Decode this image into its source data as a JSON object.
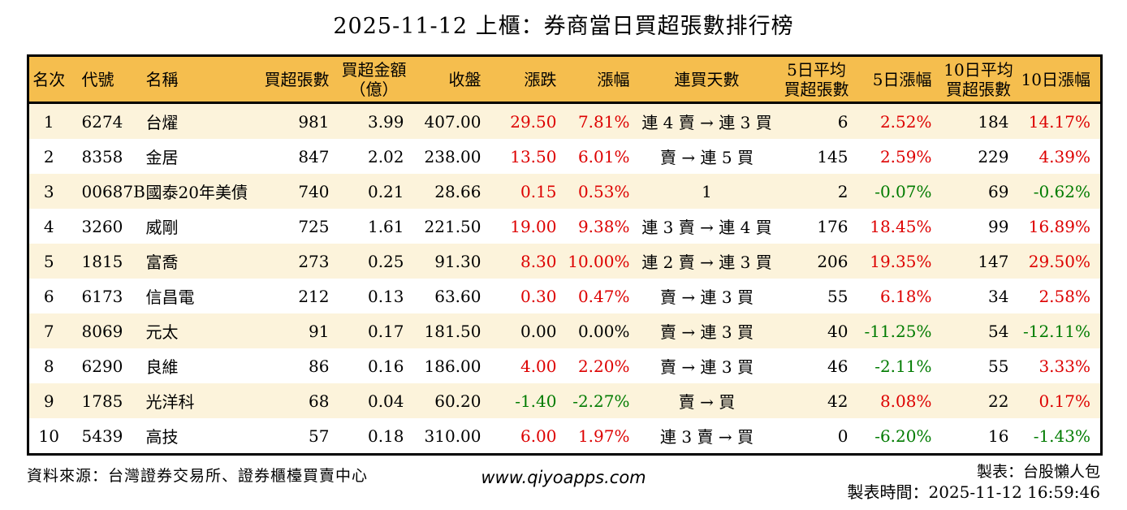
{
  "title": "2025-11-12 上櫃：券商當日買超張數排行榜",
  "table": {
    "headers": [
      "名次",
      "代號",
      "名稱",
      "買超張數",
      "買超金額\n（億）",
      "收盤",
      "漲跌",
      "漲幅",
      "連買天數",
      "5日平均\n買超張數",
      "5日漲幅",
      "10日平均\n買超張數",
      "10日漲幅"
    ],
    "rows": [
      {
        "cells": [
          "1",
          "6274",
          "台燿",
          "981",
          "3.99",
          "407.00",
          "29.50",
          "7.81%",
          "連 4 賣 → 連 3 買",
          "6",
          "2.52%",
          "184",
          "14.17%"
        ],
        "tones": [
          null,
          null,
          null,
          null,
          null,
          null,
          "up",
          "up",
          null,
          null,
          "up",
          null,
          "up"
        ]
      },
      {
        "cells": [
          "2",
          "8358",
          "金居",
          "847",
          "2.02",
          "238.00",
          "13.50",
          "6.01%",
          "賣 → 連 5 買",
          "145",
          "2.59%",
          "229",
          "4.39%"
        ],
        "tones": [
          null,
          null,
          null,
          null,
          null,
          null,
          "up",
          "up",
          null,
          null,
          "up",
          null,
          "up"
        ]
      },
      {
        "cells": [
          "3",
          "00687B",
          "國泰20年美債",
          "740",
          "0.21",
          "28.66",
          "0.15",
          "0.53%",
          "1",
          "2",
          "-0.07%",
          "69",
          "-0.62%"
        ],
        "tones": [
          null,
          null,
          null,
          null,
          null,
          null,
          "up",
          "up",
          null,
          null,
          "down",
          null,
          "down"
        ]
      },
      {
        "cells": [
          "4",
          "3260",
          "威剛",
          "725",
          "1.61",
          "221.50",
          "19.00",
          "9.38%",
          "連 3 賣 → 連 4 買",
          "176",
          "18.45%",
          "99",
          "16.89%"
        ],
        "tones": [
          null,
          null,
          null,
          null,
          null,
          null,
          "up",
          "up",
          null,
          null,
          "up",
          null,
          "up"
        ]
      },
      {
        "cells": [
          "5",
          "1815",
          "富喬",
          "273",
          "0.25",
          "91.30",
          "8.30",
          "10.00%",
          "連 2 賣 → 連 3 買",
          "206",
          "19.35%",
          "147",
          "29.50%"
        ],
        "tones": [
          null,
          null,
          null,
          null,
          null,
          null,
          "up",
          "up",
          null,
          null,
          "up",
          null,
          "up"
        ]
      },
      {
        "cells": [
          "6",
          "6173",
          "信昌電",
          "212",
          "0.13",
          "63.60",
          "0.30",
          "0.47%",
          "賣 → 連 3 買",
          "55",
          "6.18%",
          "34",
          "2.58%"
        ],
        "tones": [
          null,
          null,
          null,
          null,
          null,
          null,
          "up",
          "up",
          null,
          null,
          "up",
          null,
          "up"
        ]
      },
      {
        "cells": [
          "7",
          "8069",
          "元太",
          "91",
          "0.17",
          "181.50",
          "0.00",
          "0.00%",
          "賣 → 連 3 買",
          "40",
          "-11.25%",
          "54",
          "-12.11%"
        ],
        "tones": [
          null,
          null,
          null,
          null,
          null,
          null,
          null,
          null,
          null,
          null,
          "down",
          null,
          "down"
        ]
      },
      {
        "cells": [
          "8",
          "6290",
          "良維",
          "86",
          "0.16",
          "186.00",
          "4.00",
          "2.20%",
          "賣 → 連 3 買",
          "46",
          "-2.11%",
          "55",
          "3.33%"
        ],
        "tones": [
          null,
          null,
          null,
          null,
          null,
          null,
          "up",
          "up",
          null,
          null,
          "down",
          null,
          "up"
        ]
      },
      {
        "cells": [
          "9",
          "1785",
          "光洋科",
          "68",
          "0.04",
          "60.20",
          "-1.40",
          "-2.27%",
          "賣 → 買",
          "42",
          "8.08%",
          "22",
          "0.17%"
        ],
        "tones": [
          null,
          null,
          null,
          null,
          null,
          null,
          "down",
          "down",
          null,
          null,
          "up",
          null,
          "up"
        ]
      },
      {
        "cells": [
          "10",
          "5439",
          "高技",
          "57",
          "0.18",
          "310.00",
          "6.00",
          "1.97%",
          "連 3 賣 → 買",
          "0",
          "-6.20%",
          "16",
          "-1.43%"
        ],
        "tones": [
          null,
          null,
          null,
          null,
          null,
          null,
          "up",
          "up",
          null,
          null,
          "down",
          null,
          "down"
        ]
      }
    ]
  },
  "footer": {
    "source": "資料來源：台灣證券交易所、證券櫃檯買賣中心",
    "site": "www.qiyoapps.com",
    "maker": "製表：台股懶人包",
    "made_at": "製表時間：2025-11-12 16:59:46"
  },
  "colors": {
    "up": "#dd0000",
    "down": "#007b00",
    "header_bg": "#f5be4e",
    "stripe_bg": "#fcf3db",
    "border": "#000000"
  }
}
